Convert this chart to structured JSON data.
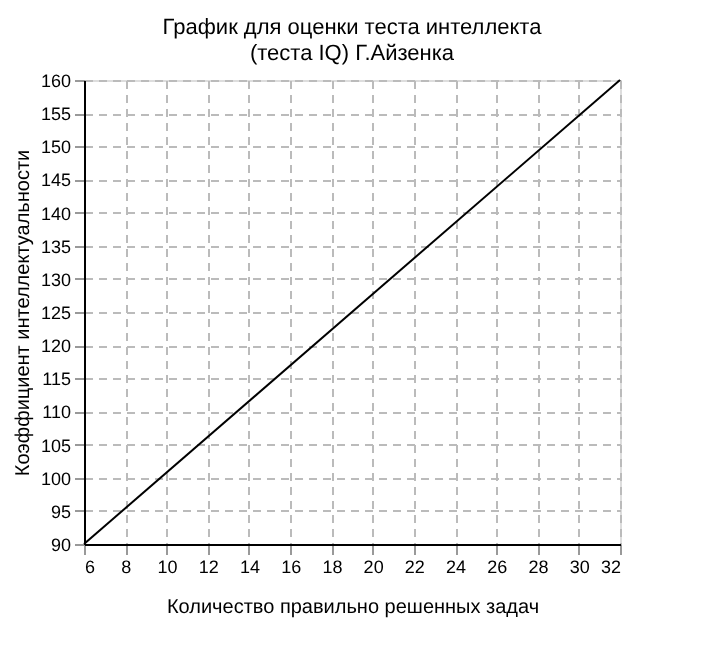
{
  "chart_data": {
    "type": "line",
    "title": [
      "График для оценки теста интеллекта",
      "(теста IQ) Г.Айзенка"
    ],
    "xlabel": "Количество правильно решенных задач",
    "ylabel": "Коэффициент интеллектуальности",
    "x": [
      6,
      32
    ],
    "series": [
      {
        "color": "#000000",
        "values": [
          90,
          160
        ]
      }
    ],
    "xlim": [
      6,
      32
    ],
    "xticks": [
      6,
      8,
      10,
      12,
      14,
      16,
      18,
      20,
      22,
      24,
      26,
      28,
      30,
      32
    ],
    "ylim": [
      90,
      160
    ],
    "yticks": [
      90,
      95,
      100,
      105,
      110,
      115,
      120,
      125,
      130,
      135,
      140,
      145,
      150,
      155,
      160
    ],
    "grid": true,
    "line_style": "solid",
    "marker": "none"
  }
}
